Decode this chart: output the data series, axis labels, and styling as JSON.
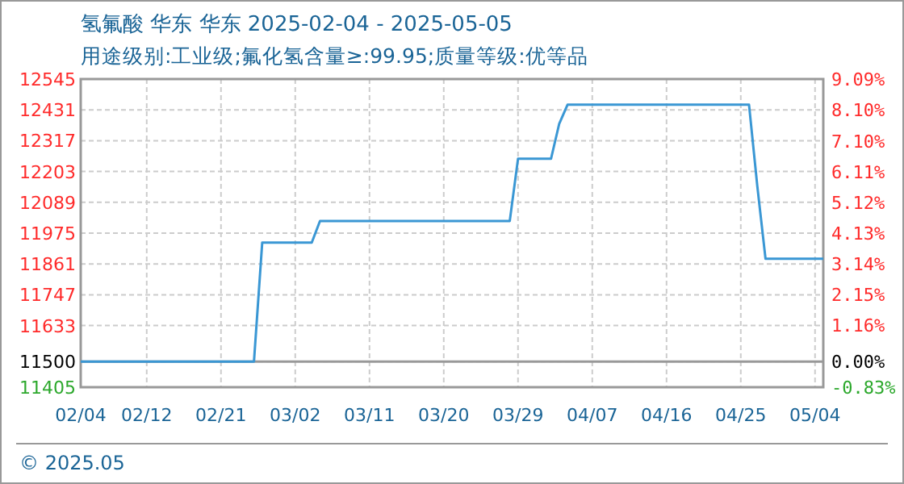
{
  "chart_data": {
    "type": "line",
    "title": "氢氟酸 华东 华东 2025-02-04 - 2025-05-05",
    "subtitle": "用途级别:工业级;氟化氢含量≥:99.95;质量等级:优等品",
    "x": [
      "2025-02-04",
      "2025-02-25",
      "2025-02-26",
      "2025-03-04",
      "2025-03-05",
      "2025-03-28",
      "2025-03-29",
      "2025-04-02",
      "2025-04-03",
      "2025-04-04",
      "2025-04-26",
      "2025-04-27",
      "2025-04-28",
      "2025-05-05"
    ],
    "series": [
      {
        "color": "#3a97d4",
        "values": [
          11500,
          11500,
          11940,
          11940,
          12020,
          12020,
          12250,
          12250,
          12380,
          12450,
          12450,
          12150,
          11880,
          11880
        ]
      }
    ],
    "xlim": [
      "2025-02-04",
      "2025-05-05"
    ],
    "xticks": [
      {
        "value": "2025-02-04",
        "label": "02/04"
      },
      {
        "value": "2025-02-12",
        "label": "02/12"
      },
      {
        "value": "2025-02-21",
        "label": "02/21"
      },
      {
        "value": "2025-03-02",
        "label": "03/02"
      },
      {
        "value": "2025-03-11",
        "label": "03/11"
      },
      {
        "value": "2025-03-20",
        "label": "03/20"
      },
      {
        "value": "2025-03-29",
        "label": "03/29"
      },
      {
        "value": "2025-04-07",
        "label": "04/07"
      },
      {
        "value": "2025-04-16",
        "label": "04/16"
      },
      {
        "value": "2025-04-25",
        "label": "04/25"
      },
      {
        "value": "2025-05-04",
        "label": "05/04"
      }
    ],
    "ylim": [
      11405,
      12545
    ],
    "yticks": [
      11405,
      11500,
      11633,
      11747,
      11861,
      11975,
      12089,
      12203,
      12317,
      12431,
      12545
    ],
    "y2lim": [
      -0.83,
      9.09
    ],
    "y2ticks": [
      {
        "value": -0.83,
        "label": "-0.83%"
      },
      {
        "value": 0,
        "label": "0.00%"
      },
      {
        "value": 1.16,
        "label": "1.16%"
      },
      {
        "value": 2.15,
        "label": "2.15%"
      },
      {
        "value": 3.14,
        "label": "3.14%"
      },
      {
        "value": 4.13,
        "label": "4.13%"
      },
      {
        "value": 5.12,
        "label": "5.12%"
      },
      {
        "value": 6.11,
        "label": "6.11%"
      },
      {
        "value": 7.1,
        "label": "7.10%"
      },
      {
        "value": 8.1,
        "label": "8.10%"
      },
      {
        "value": 9.09,
        "label": "9.09%"
      }
    ],
    "grid": true,
    "ref_lines": [
      {
        "axis": "y",
        "value": 11500,
        "color": "#999999"
      }
    ],
    "annotations": [
      "© 2025.05"
    ]
  }
}
